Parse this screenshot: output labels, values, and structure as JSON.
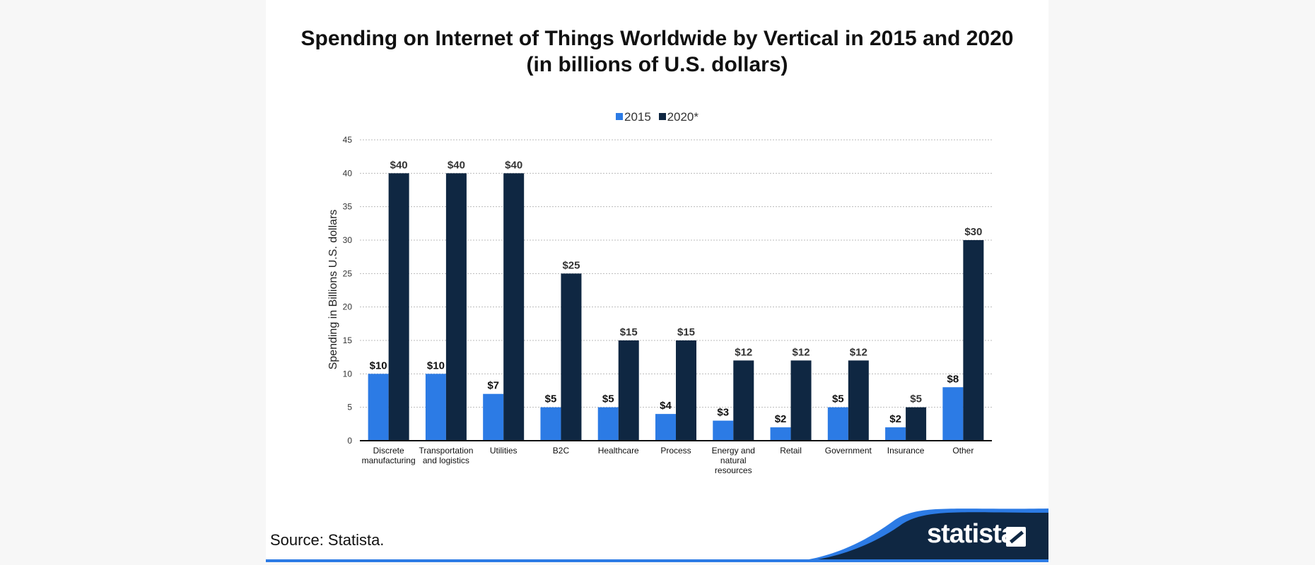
{
  "colors": {
    "series_2015": "#2c7be5",
    "series_2020": "#0f2742",
    "grid": "#bbbbbb",
    "footer_dark": "#0f2742",
    "footer_accent": "#2c7be5"
  },
  "chart_data": {
    "type": "bar",
    "title_line1": "Spending on Internet of Things Worldwide by Vertical in 2015 and 2020",
    "title_line2": "(in billions of U.S. dollars)",
    "ylabel": "Spending in Billions U.S. dollars",
    "xlabel": "",
    "ylim": [
      0,
      45
    ],
    "yticks": [
      0,
      5,
      10,
      15,
      20,
      25,
      30,
      35,
      40,
      45
    ],
    "grid": true,
    "legend_position": "top-center",
    "categories": [
      [
        "Discrete",
        "manufacturing"
      ],
      [
        "Transportation",
        "and logistics"
      ],
      [
        "Utilities"
      ],
      [
        "B2C"
      ],
      [
        "Healthcare"
      ],
      [
        "Process"
      ],
      [
        "Energy and",
        "natural",
        "resources"
      ],
      [
        "Retail"
      ],
      [
        "Government"
      ],
      [
        "Insurance"
      ],
      [
        "Other"
      ]
    ],
    "series": [
      {
        "name": "2015",
        "values": [
          10,
          10,
          7,
          5,
          5,
          4,
          3,
          2,
          5,
          2,
          8
        ],
        "labels": [
          "$10",
          "$10",
          "$7",
          "$5",
          "$5",
          "$4",
          "$3",
          "$2",
          "$5",
          "$2",
          "$8"
        ]
      },
      {
        "name": "2020*",
        "values": [
          40,
          40,
          40,
          25,
          15,
          15,
          12,
          12,
          12,
          5,
          30
        ],
        "labels": [
          "$40",
          "$40",
          "$40",
          "$25",
          "$15",
          "$15",
          "$12",
          "$12",
          "$12",
          "$5",
          "$30"
        ]
      }
    ]
  },
  "footer": {
    "source": "Source: Statista.",
    "brand": "statista"
  }
}
